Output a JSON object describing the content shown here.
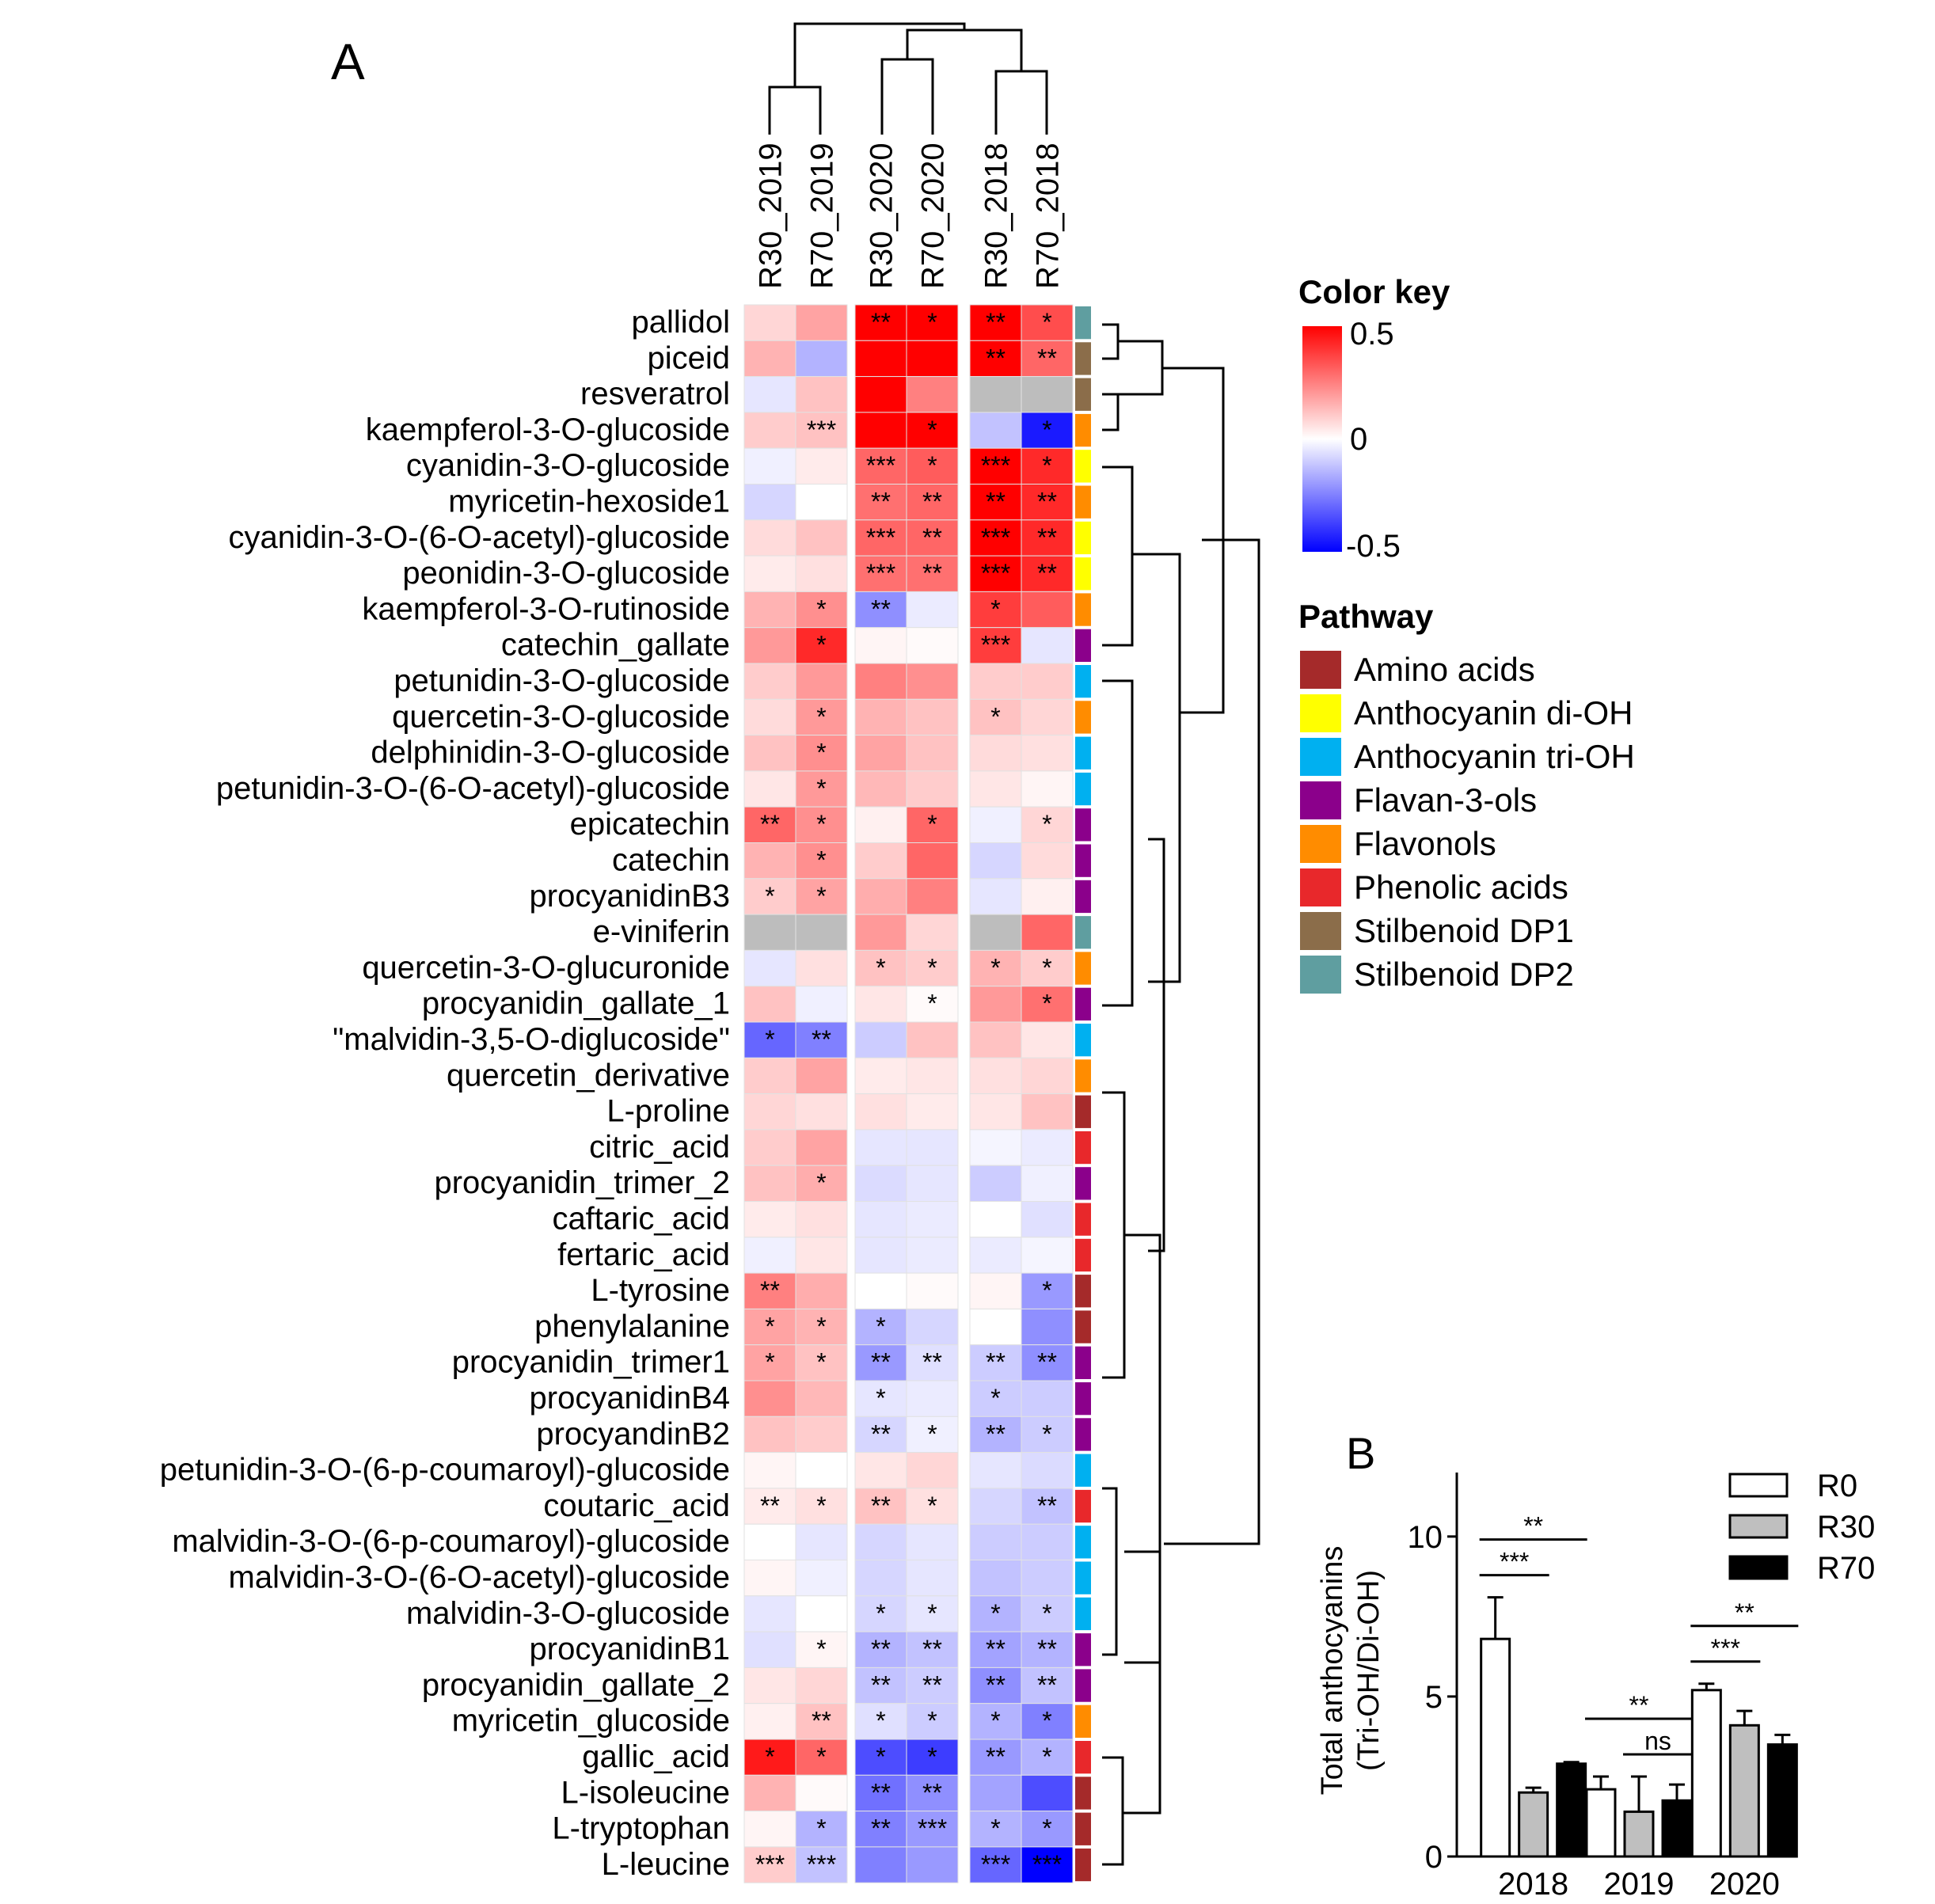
{
  "chart_data": [
    {
      "panel": "A",
      "type": "heatmap",
      "columns": [
        "R30_2019",
        "R70_2019",
        "R30_2020",
        "R70_2020",
        "R30_2018",
        "R70_2018"
      ],
      "rows": [
        "pallidol",
        "piceid",
        "resveratrol",
        "kaempferol-3-O-glucoside",
        "cyanidin-3-O-glucoside",
        "myricetin-hexoside1",
        "cyanidin-3-O-(6-O-acetyl)-glucoside",
        "peonidin-3-O-glucoside",
        "kaempferol-3-O-rutinoside",
        "catechin_gallate",
        "petunidin-3-O-glucoside",
        "quercetin-3-O-glucoside",
        "delphinidin-3-O-glucoside",
        "petunidin-3-O-(6-O-acetyl)-glucoside",
        "epicatechin",
        "catechin",
        "procyanidinB3",
        "e-viniferin",
        "quercetin-3-O-glucuronide",
        "procyanidin_gallate_1",
        "\"malvidin-3,5-O-diglucoside\"",
        "quercetin_derivative",
        "L-proline",
        "citric_acid",
        "procyanidin_trimer_2",
        "caftaric_acid",
        "fertaric_acid",
        "L-tyrosine",
        "phenylalanine",
        "procyanidin_trimer1",
        "procyanidinB4",
        "procyandinB2",
        "petunidin-3-O-(6-p-coumaroyl)-glucoside",
        "coutaric_acid",
        "malvidin-3-O-(6-p-coumaroyl)-glucoside",
        "malvidin-3-O-(6-O-acetyl)-glucoside",
        "malvidin-3-O-glucoside",
        "procyanidinB1",
        "procyanidin_gallate_2",
        "myricetin_glucoside",
        "gallic_acid",
        "L-isoleucine",
        "L-tryptophan",
        "L-leucine"
      ],
      "values": [
        [
          0.08,
          0.18,
          0.5,
          0.5,
          0.5,
          0.35
        ],
        [
          0.15,
          -0.15,
          0.5,
          0.5,
          0.5,
          0.3
        ],
        [
          -0.05,
          0.12,
          0.5,
          0.25,
          null,
          null
        ],
        [
          0.1,
          0.12,
          0.5,
          0.5,
          -0.12,
          -0.45
        ],
        [
          -0.03,
          0.04,
          0.3,
          0.32,
          0.5,
          0.42
        ],
        [
          -0.08,
          0.0,
          0.28,
          0.3,
          0.5,
          0.42
        ],
        [
          0.07,
          0.12,
          0.3,
          0.3,
          0.5,
          0.42
        ],
        [
          0.04,
          0.06,
          0.28,
          0.28,
          0.5,
          0.42
        ],
        [
          0.15,
          0.22,
          -0.22,
          -0.04,
          0.38,
          0.32
        ],
        [
          0.2,
          0.42,
          0.02,
          0.01,
          0.38,
          -0.05
        ],
        [
          0.1,
          0.2,
          0.25,
          0.22,
          0.1,
          0.1
        ],
        [
          0.07,
          0.2,
          0.15,
          0.12,
          0.12,
          0.08
        ],
        [
          0.12,
          0.22,
          0.18,
          0.12,
          0.07,
          0.06
        ],
        [
          0.05,
          0.2,
          0.14,
          0.1,
          0.05,
          0.02
        ],
        [
          0.3,
          0.22,
          0.03,
          0.3,
          -0.03,
          0.08
        ],
        [
          0.15,
          0.22,
          0.1,
          0.3,
          -0.08,
          0.07
        ],
        [
          0.1,
          0.18,
          0.16,
          0.25,
          -0.05,
          0.03
        ],
        [
          null,
          null,
          0.2,
          0.08,
          null,
          0.3
        ],
        [
          -0.05,
          0.06,
          0.12,
          0.1,
          0.15,
          0.1
        ],
        [
          0.12,
          -0.03,
          0.05,
          0.01,
          0.2,
          0.28
        ],
        [
          -0.3,
          -0.25,
          -0.1,
          0.12,
          0.12,
          0.05
        ],
        [
          0.1,
          0.18,
          0.04,
          0.05,
          0.06,
          0.08
        ],
        [
          0.08,
          0.06,
          0.06,
          0.04,
          0.05,
          0.12
        ],
        [
          0.1,
          0.18,
          -0.05,
          -0.05,
          -0.02,
          -0.04
        ],
        [
          0.12,
          0.16,
          -0.07,
          -0.05,
          -0.1,
          -0.03
        ],
        [
          0.04,
          0.06,
          -0.05,
          -0.04,
          0.0,
          -0.06
        ],
        [
          -0.03,
          0.05,
          -0.05,
          -0.04,
          -0.04,
          -0.02
        ],
        [
          0.25,
          0.16,
          0.0,
          0.01,
          0.02,
          -0.2
        ],
        [
          0.18,
          0.15,
          -0.15,
          -0.08,
          0.0,
          -0.22
        ],
        [
          0.18,
          0.12,
          -0.2,
          -0.06,
          -0.1,
          -0.22
        ],
        [
          0.22,
          0.14,
          -0.05,
          -0.04,
          -0.1,
          -0.1
        ],
        [
          0.12,
          0.1,
          -0.08,
          -0.03,
          -0.15,
          -0.1
        ],
        [
          0.02,
          0.0,
          0.05,
          0.08,
          -0.05,
          -0.07
        ],
        [
          0.04,
          0.06,
          0.12,
          0.06,
          -0.08,
          -0.12
        ],
        [
          0.0,
          -0.05,
          -0.08,
          -0.05,
          -0.1,
          -0.1
        ],
        [
          0.02,
          -0.03,
          -0.08,
          -0.05,
          -0.12,
          -0.1
        ],
        [
          -0.05,
          0.0,
          -0.08,
          -0.05,
          -0.15,
          -0.1
        ],
        [
          -0.06,
          0.02,
          -0.15,
          -0.12,
          -0.18,
          -0.15
        ],
        [
          0.05,
          0.08,
          -0.12,
          -0.1,
          -0.22,
          -0.12
        ],
        [
          0.03,
          0.12,
          -0.06,
          -0.1,
          -0.15,
          -0.25
        ],
        [
          0.45,
          0.3,
          -0.35,
          -0.38,
          -0.2,
          -0.15
        ],
        [
          0.15,
          0.01,
          -0.28,
          -0.22,
          -0.18,
          -0.35
        ],
        [
          0.02,
          -0.15,
          -0.25,
          -0.2,
          -0.15,
          -0.2
        ],
        [
          0.1,
          -0.12,
          -0.25,
          -0.2,
          -0.3,
          -0.5
        ]
      ],
      "significance": [
        [
          "",
          "",
          "**",
          "*",
          "**",
          "*"
        ],
        [
          "",
          "",
          "",
          "",
          "**",
          "**"
        ],
        [
          "",
          "",
          "",
          "",
          "",
          ""
        ],
        [
          "",
          "***",
          "",
          "*",
          "",
          "*"
        ],
        [
          "",
          "",
          "***",
          "*",
          "***",
          "*"
        ],
        [
          "",
          "",
          "**",
          "**",
          "**",
          "**"
        ],
        [
          "",
          "",
          "***",
          "**",
          "***",
          "**"
        ],
        [
          "",
          "",
          "***",
          "**",
          "***",
          "**"
        ],
        [
          "",
          "*",
          "**",
          "",
          "*",
          ""
        ],
        [
          "",
          "*",
          "",
          "",
          "***",
          ""
        ],
        [
          "",
          "",
          "",
          "",
          "",
          ""
        ],
        [
          "",
          "*",
          "",
          "",
          "*",
          ""
        ],
        [
          "",
          "*",
          "",
          "",
          "",
          ""
        ],
        [
          "",
          "*",
          "",
          "",
          "",
          ""
        ],
        [
          "**",
          "*",
          "",
          "*",
          "",
          "*"
        ],
        [
          "",
          "*",
          "",
          "",
          "",
          ""
        ],
        [
          "*",
          "*",
          "",
          "",
          "",
          ""
        ],
        [
          "",
          "",
          "",
          "",
          "",
          ""
        ],
        [
          "",
          "",
          "*",
          "*",
          "*",
          "*"
        ],
        [
          "",
          "",
          "",
          "*",
          "",
          "*"
        ],
        [
          "*",
          "**",
          "",
          "",
          "",
          ""
        ],
        [
          "",
          "",
          "",
          "",
          "",
          ""
        ],
        [
          "",
          "",
          "",
          "",
          "",
          ""
        ],
        [
          "",
          "",
          "",
          "",
          "",
          ""
        ],
        [
          "",
          "*",
          "",
          "",
          "",
          ""
        ],
        [
          "",
          "",
          "",
          "",
          "",
          ""
        ],
        [
          "",
          "",
          "",
          "",
          "",
          ""
        ],
        [
          "**",
          "",
          "",
          "",
          "",
          "*"
        ],
        [
          "*",
          "*",
          "*",
          "",
          "",
          ""
        ],
        [
          "*",
          "*",
          "**",
          "**",
          "**",
          "**"
        ],
        [
          "",
          "",
          "*",
          "",
          "*",
          ""
        ],
        [
          "",
          "",
          "**",
          "*",
          "**",
          "*"
        ],
        [
          "",
          "",
          "",
          "",
          "",
          ""
        ],
        [
          "**",
          "*",
          "**",
          "*",
          "",
          "**"
        ],
        [
          "",
          "",
          "",
          "",
          "",
          ""
        ],
        [
          "",
          "",
          "",
          "",
          "",
          ""
        ],
        [
          "",
          "",
          "*",
          "*",
          "*",
          "*"
        ],
        [
          "",
          "*",
          "**",
          "**",
          "**",
          "**"
        ],
        [
          "",
          "",
          "**",
          "**",
          "**",
          "**"
        ],
        [
          "",
          "**",
          "*",
          "*",
          "*",
          "*"
        ],
        [
          "*",
          "*",
          "*",
          "*",
          "**",
          "*"
        ],
        [
          "",
          "",
          "**",
          "**",
          "",
          ""
        ],
        [
          "",
          "*",
          "**",
          "***",
          "*",
          "*"
        ],
        [
          "***",
          "***",
          "",
          "",
          "***",
          "***"
        ]
      ],
      "row_pathway": [
        "Stilbenoid DP2",
        "Stilbenoid DP1",
        "Stilbenoid DP1",
        "Flavonols",
        "Anthocyanin di-OH",
        "Flavonols",
        "Anthocyanin di-OH",
        "Anthocyanin di-OH",
        "Flavonols",
        "Flavan-3-ols",
        "Anthocyanin tri-OH",
        "Flavonols",
        "Anthocyanin tri-OH",
        "Anthocyanin tri-OH",
        "Flavan-3-ols",
        "Flavan-3-ols",
        "Flavan-3-ols",
        "Stilbenoid DP2",
        "Flavonols",
        "Flavan-3-ols",
        "Anthocyanin tri-OH",
        "Flavonols",
        "Amino acids",
        "Phenolic acids",
        "Flavan-3-ols",
        "Phenolic acids",
        "Phenolic acids",
        "Amino acids",
        "Amino acids",
        "Flavan-3-ols",
        "Flavan-3-ols",
        "Flavan-3-ols",
        "Anthocyanin tri-OH",
        "Phenolic acids",
        "Anthocyanin tri-OH",
        "Anthocyanin tri-OH",
        "Anthocyanin tri-OH",
        "Flavan-3-ols",
        "Flavan-3-ols",
        "Flavonols",
        "Phenolic acids",
        "Amino acids",
        "Amino acids",
        "Amino acids"
      ],
      "color_key": {
        "title": "Color key",
        "ticks": [
          "0.5",
          "0",
          "-0.5"
        ],
        "range": [
          -0.5,
          0.5
        ],
        "low": "#0000ff",
        "mid": "#ffffff",
        "high": "#ff0000"
      },
      "pathway_legend": {
        "title": "Pathway",
        "items": [
          {
            "name": "Amino acids",
            "color": "#a52a2a"
          },
          {
            "name": "Anthocyanin di-OH",
            "color": "#ffff00"
          },
          {
            "name": "Anthocyanin tri-OH",
            "color": "#00b0f0"
          },
          {
            "name": "Flavan-3-ols",
            "color": "#8b008b"
          },
          {
            "name": "Flavonols",
            "color": "#ff8c00"
          },
          {
            "name": "Phenolic acids",
            "color": "#e8282b"
          },
          {
            "name": "Stilbenoid DP1",
            "color": "#8b6d4a"
          },
          {
            "name": "Stilbenoid DP2",
            "color": "#5f9ea0"
          }
        ]
      },
      "na_color": "#bdbdbd"
    },
    {
      "panel": "B",
      "type": "bar",
      "categories": [
        "2018",
        "2019",
        "2020"
      ],
      "series": [
        {
          "name": "R0",
          "values": [
            6.8,
            2.1,
            5.2
          ],
          "errors": [
            1.3,
            0.4,
            0.2
          ],
          "color": "#ffffff"
        },
        {
          "name": "R30",
          "values": [
            2.0,
            1.4,
            4.1
          ],
          "errors": [
            0.15,
            1.1,
            0.45
          ],
          "color": "#bfbfbf"
        },
        {
          "name": "R70",
          "values": [
            2.9,
            1.75,
            3.5
          ],
          "errors": [
            0.05,
            0.5,
            0.3
          ],
          "color": "#000000"
        }
      ],
      "ylabel_line1": "Total anthocyanins",
      "ylabel_line2": "(Tri-OH/Di-OH)",
      "yticks": [
        "0",
        "5",
        "10"
      ],
      "ylim": [
        0,
        12
      ],
      "annotations": [
        {
          "category": "2018",
          "from": "R0",
          "to": "R70",
          "label": "**"
        },
        {
          "category": "2018",
          "from": "R0",
          "to": "R30",
          "label": "***"
        },
        {
          "category": "2019",
          "from": "R0",
          "to": "R70",
          "label": "**"
        },
        {
          "category": "2019",
          "from": "R30",
          "to": "R70",
          "label": "ns"
        },
        {
          "category": "2020",
          "from": "R0",
          "to": "R70",
          "label": "**"
        },
        {
          "category": "2020",
          "from": "R0",
          "to": "R30",
          "label": "***"
        }
      ]
    }
  ],
  "panel_labels": {
    "a": "A",
    "b": "B"
  }
}
